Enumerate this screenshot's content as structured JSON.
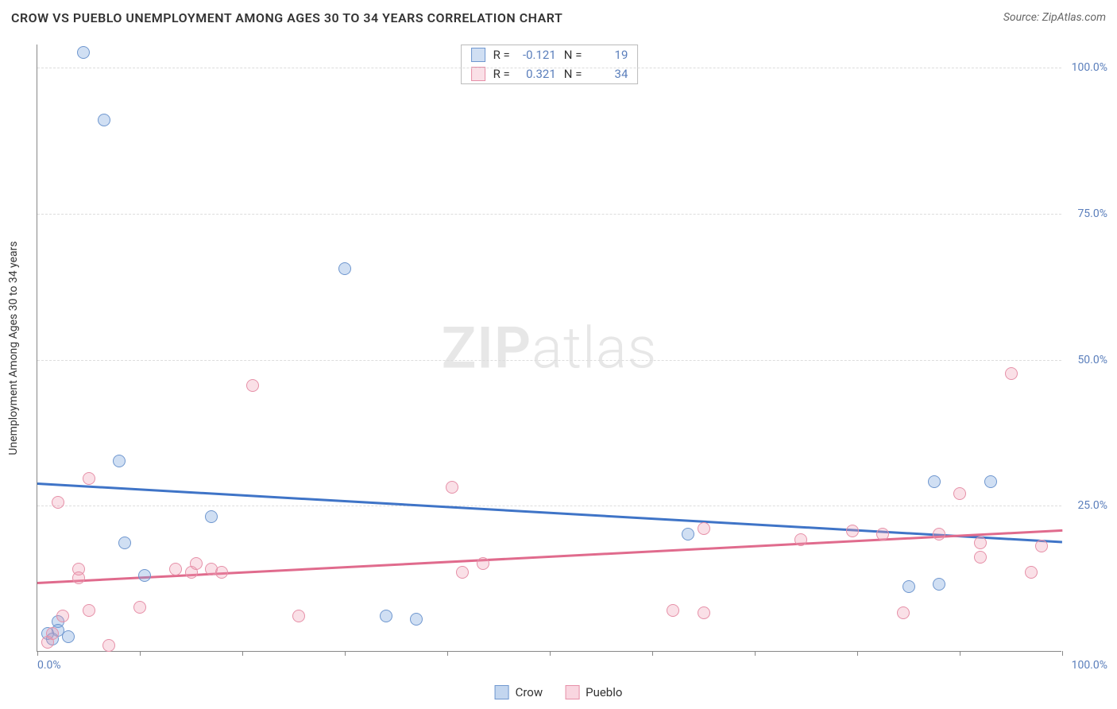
{
  "header": {
    "title": "CROW VS PUEBLO UNEMPLOYMENT AMONG AGES 30 TO 34 YEARS CORRELATION CHART",
    "source": "Source: ZipAtlas.com"
  },
  "watermark": {
    "bold": "ZIP",
    "light": "atlas"
  },
  "chart": {
    "type": "scatter",
    "ylabel": "Unemployment Among Ages 30 to 34 years",
    "background_color": "#ffffff",
    "grid_color": "#dddddd",
    "axis_color": "#888888",
    "tick_label_color": "#5b7fbc",
    "label_fontsize": 14,
    "title_fontsize": 16,
    "xlim": [
      0,
      100
    ],
    "ylim": [
      0,
      104
    ],
    "x_axis": {
      "min_label": "0.0%",
      "max_label": "100.0%",
      "tick_positions": [
        0,
        10,
        20,
        30,
        40,
        50,
        60,
        70,
        80,
        90,
        100
      ]
    },
    "y_axis": {
      "ticks": [
        25,
        50,
        75,
        100
      ],
      "tick_labels": [
        "25.0%",
        "50.0%",
        "75.0%",
        "100.0%"
      ]
    },
    "marker_radius": 8,
    "marker_border_width": 1.5,
    "trend_line_width": 2.5,
    "series": [
      {
        "name": "Crow",
        "fill_color": "rgba(121,163,220,0.35)",
        "stroke_color": "#6f97cf",
        "r_value": "-0.121",
        "n_value": "19",
        "trend": {
          "y_at_xmin": 29.0,
          "y_at_xmax": 19.0,
          "color": "#3f74c7"
        },
        "points": [
          {
            "x": 4.5,
            "y": 102.5
          },
          {
            "x": 6.5,
            "y": 91.0
          },
          {
            "x": 30.0,
            "y": 65.5
          },
          {
            "x": 8.0,
            "y": 32.5
          },
          {
            "x": 17.0,
            "y": 23.0
          },
          {
            "x": 8.5,
            "y": 18.5
          },
          {
            "x": 10.5,
            "y": 13.0
          },
          {
            "x": 2.0,
            "y": 5.0
          },
          {
            "x": 2.0,
            "y": 3.5
          },
          {
            "x": 3.0,
            "y": 2.5
          },
          {
            "x": 1.0,
            "y": 3.0
          },
          {
            "x": 1.5,
            "y": 2.0
          },
          {
            "x": 34.0,
            "y": 6.0
          },
          {
            "x": 37.0,
            "y": 5.5
          },
          {
            "x": 63.5,
            "y": 20.0
          },
          {
            "x": 85.0,
            "y": 11.0
          },
          {
            "x": 88.0,
            "y": 11.5
          },
          {
            "x": 87.5,
            "y": 29.0
          },
          {
            "x": 93.0,
            "y": 29.0
          }
        ]
      },
      {
        "name": "Pueblo",
        "fill_color": "rgba(240,153,177,0.30)",
        "stroke_color": "#e690a8",
        "r_value": "0.321",
        "n_value": "34",
        "trend": {
          "y_at_xmin": 12.0,
          "y_at_xmax": 21.0,
          "color": "#e06b8d"
        },
        "points": [
          {
            "x": 2.0,
            "y": 25.5
          },
          {
            "x": 5.0,
            "y": 29.5
          },
          {
            "x": 21.0,
            "y": 45.5
          },
          {
            "x": 1.0,
            "y": 1.5
          },
          {
            "x": 1.5,
            "y": 3.0
          },
          {
            "x": 2.5,
            "y": 6.0
          },
          {
            "x": 4.0,
            "y": 14.0
          },
          {
            "x": 5.0,
            "y": 7.0
          },
          {
            "x": 4.0,
            "y": 12.5
          },
          {
            "x": 7.0,
            "y": 1.0
          },
          {
            "x": 10.0,
            "y": 7.5
          },
          {
            "x": 13.5,
            "y": 14.0
          },
          {
            "x": 15.0,
            "y": 13.5
          },
          {
            "x": 15.5,
            "y": 15.0
          },
          {
            "x": 17.0,
            "y": 14.0
          },
          {
            "x": 18.0,
            "y": 13.5
          },
          {
            "x": 25.5,
            "y": 6.0
          },
          {
            "x": 40.5,
            "y": 28.0
          },
          {
            "x": 41.5,
            "y": 13.5
          },
          {
            "x": 43.5,
            "y": 15.0
          },
          {
            "x": 62.0,
            "y": 7.0
          },
          {
            "x": 65.0,
            "y": 6.5
          },
          {
            "x": 65.0,
            "y": 21.0
          },
          {
            "x": 74.5,
            "y": 19.0
          },
          {
            "x": 79.5,
            "y": 20.5
          },
          {
            "x": 82.5,
            "y": 20.0
          },
          {
            "x": 84.5,
            "y": 6.5
          },
          {
            "x": 88.0,
            "y": 20.0
          },
          {
            "x": 90.0,
            "y": 27.0
          },
          {
            "x": 92.0,
            "y": 16.0
          },
          {
            "x": 92.0,
            "y": 18.5
          },
          {
            "x": 95.0,
            "y": 47.5
          },
          {
            "x": 97.0,
            "y": 13.5
          },
          {
            "x": 98.0,
            "y": 18.0
          }
        ]
      }
    ],
    "bottom_legend": [
      {
        "label": "Crow",
        "fill": "rgba(121,163,220,0.45)",
        "stroke": "#6f97cf"
      },
      {
        "label": "Pueblo",
        "fill": "rgba(240,153,177,0.40)",
        "stroke": "#e690a8"
      }
    ]
  }
}
